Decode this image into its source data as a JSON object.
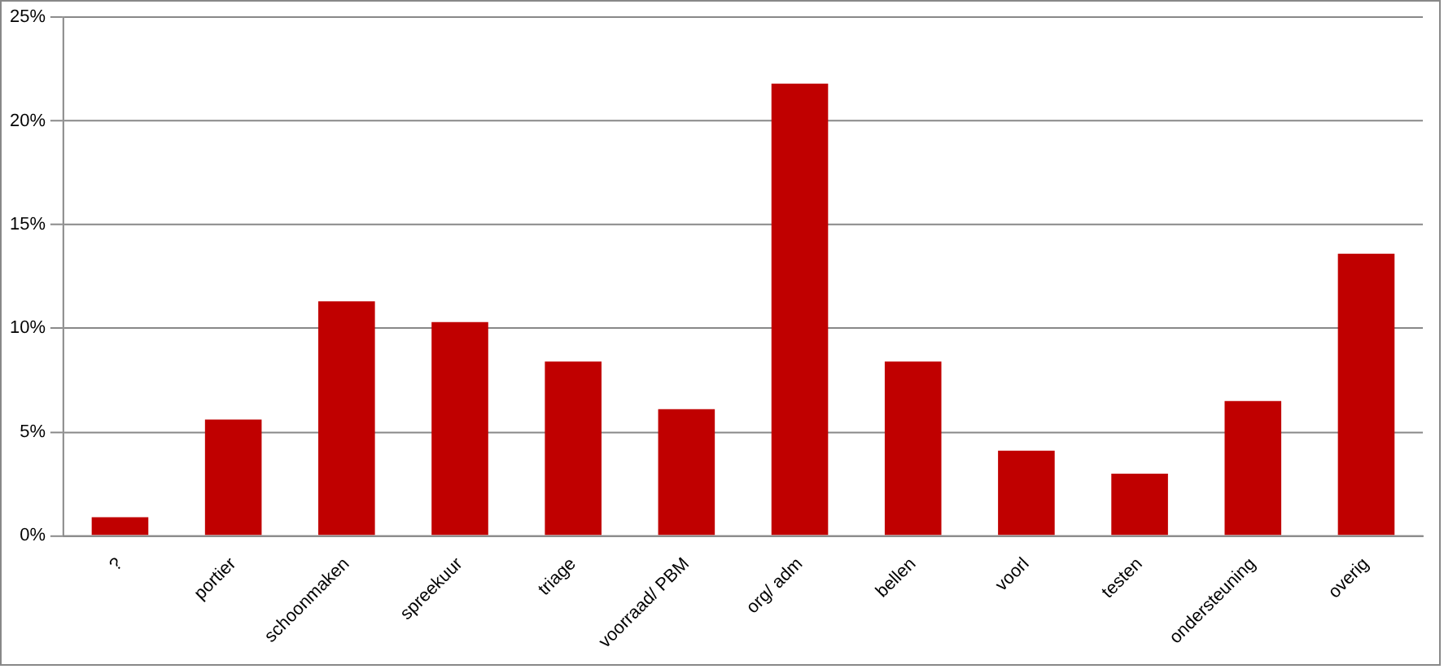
{
  "chart_data": {
    "type": "bar",
    "categories": [
      "?",
      "portier",
      "schoonmaken",
      "spreekuur",
      "triage",
      "voorraad/ PBM",
      "org/ adm",
      "bellen",
      "voorl",
      "testen",
      "ondersteuning",
      "overig"
    ],
    "values": [
      0.9,
      5.6,
      11.3,
      10.3,
      8.4,
      6.1,
      21.8,
      8.4,
      4.1,
      3.0,
      6.5,
      13.6
    ],
    "color": "#c00000",
    "ylim": [
      0,
      25
    ],
    "yticks": [
      {
        "value": 0,
        "label": "0%"
      },
      {
        "value": 5,
        "label": "5%"
      },
      {
        "value": 10,
        "label": "10%"
      },
      {
        "value": 15,
        "label": "15%"
      },
      {
        "value": 20,
        "label": "20%"
      },
      {
        "value": 25,
        "label": "25%"
      }
    ],
    "grid": "y",
    "legend": false
  }
}
